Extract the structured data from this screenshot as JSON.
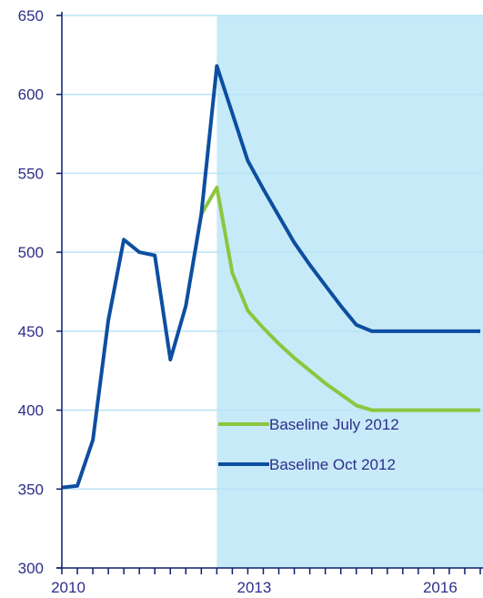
{
  "chart_data": {
    "type": "line",
    "title": "",
    "xlabel": "",
    "ylabel": "",
    "ylim": [
      300,
      650
    ],
    "yticks": [
      300,
      350,
      400,
      450,
      500,
      550,
      600,
      650
    ],
    "xlim": [
      2010,
      2016.75
    ],
    "xticks": [
      {
        "value": 2010,
        "label": "2010"
      },
      {
        "value": 2013,
        "label": "2013"
      },
      {
        "value": 2016,
        "label": "2016"
      }
    ],
    "x_minor_step": 0.25,
    "grid": "horizontal",
    "forecast_region": {
      "x_from": 2012.5,
      "x_to": 2016.75,
      "color": "#c7eaf8"
    },
    "legend": {
      "placement": "bottom-right"
    },
    "series": [
      {
        "name": "Baseline July 2012",
        "color": "#8cc63f",
        "x": [
          2012.25,
          2012.5,
          2012.75,
          2013,
          2013.25,
          2013.5,
          2013.75,
          2014,
          2014.25,
          2014.5,
          2014.75,
          2015,
          2015.25,
          2015.5,
          2015.75,
          2016,
          2016.25,
          2016.5,
          2016.75
        ],
        "y": [
          524,
          541,
          487,
          463,
          452,
          442,
          433,
          425,
          417,
          410,
          403,
          400,
          400,
          400,
          400,
          400,
          400,
          400,
          400
        ]
      },
      {
        "name": "Baseline Oct 2012",
        "color": "#0d4ea0",
        "x": [
          2010,
          2010.25,
          2010.5,
          2010.75,
          2011,
          2011.25,
          2011.5,
          2011.75,
          2012,
          2012.25,
          2012.5,
          2012.75,
          2013,
          2013.25,
          2013.5,
          2013.75,
          2014,
          2014.25,
          2014.5,
          2014.75,
          2015,
          2015.25,
          2015.5,
          2015.75,
          2016,
          2016.25,
          2016.5,
          2016.75
        ],
        "y": [
          351,
          352,
          381,
          457,
          508,
          500,
          498,
          432,
          466,
          524,
          618,
          588,
          558,
          540,
          523,
          506,
          492,
          479,
          466,
          454,
          450,
          450,
          450,
          450,
          450,
          450,
          450,
          450
        ]
      }
    ]
  },
  "colors": {
    "axis": "#0d1f6b",
    "gridline": "#b9e3f6",
    "text": "#2e2e8a"
  }
}
